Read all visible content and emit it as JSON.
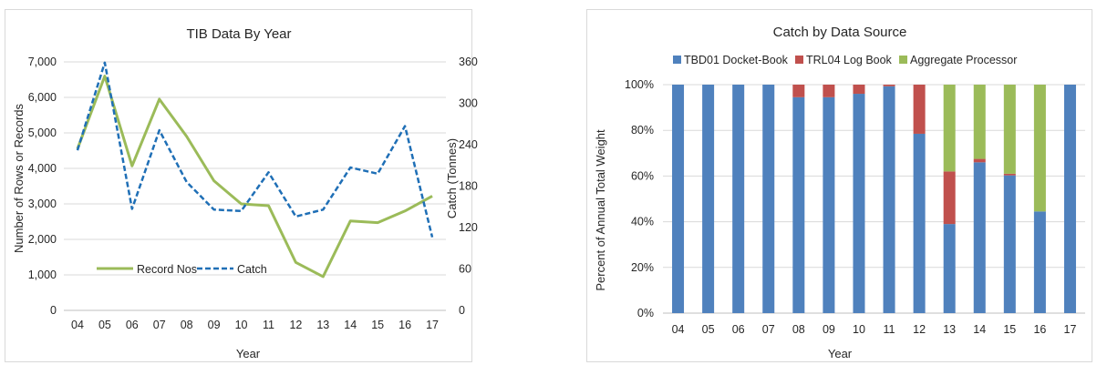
{
  "chart_data": [
    {
      "type": "line",
      "title": "TIB Data By Year",
      "xlabel": "Year",
      "ylabel": "Number of Rows or Records",
      "y2label": "Catch (Tonnes)",
      "categories": [
        "04",
        "05",
        "06",
        "07",
        "08",
        "09",
        "10",
        "11",
        "12",
        "13",
        "14",
        "15",
        "16",
        "17"
      ],
      "ylim": [
        0,
        7000
      ],
      "yticks": [
        "0",
        "1,000",
        "2,000",
        "3,000",
        "4,000",
        "5,000",
        "6,000",
        "7,000"
      ],
      "y2lim": [
        0,
        360
      ],
      "y2ticks": [
        "0",
        "60",
        "120",
        "180",
        "240",
        "300",
        "360"
      ],
      "series": [
        {
          "name": "Record Nos",
          "axis": "left",
          "color": "#9bbb59",
          "dash": "solid",
          "values": [
            4550,
            6600,
            4070,
            5950,
            4900,
            3650,
            3000,
            2950,
            1350,
            950,
            2520,
            2470,
            2800,
            3220
          ]
        },
        {
          "name": "Catch",
          "axis": "right",
          "color": "#1f6fb6",
          "dash": "dashed",
          "values": [
            232,
            359,
            147,
            261,
            186,
            146,
            144,
            200,
            136,
            146,
            207,
            198,
            267,
            106
          ]
        }
      ],
      "grid": true,
      "legend": "bottom-left"
    },
    {
      "type": "bar",
      "stacked": true,
      "title": "Catch by  Data Source",
      "xlabel": "Year",
      "ylabel": "Percent of Annual Total Weight",
      "categories": [
        "04",
        "05",
        "06",
        "07",
        "08",
        "09",
        "10",
        "11",
        "12",
        "13",
        "14",
        "15",
        "16",
        "17"
      ],
      "ylim": [
        0,
        100
      ],
      "yticks": [
        "0%",
        "20%",
        "40%",
        "60%",
        "80%",
        "100%"
      ],
      "series": [
        {
          "name": "TBD01 Docket-Book",
          "color": "#4f81bd",
          "values": [
            100,
            100,
            100,
            100,
            94.5,
            94.5,
            96,
            99.3,
            78.5,
            39,
            66,
            60.3,
            44.5,
            100
          ]
        },
        {
          "name": "TRL04 Log Book",
          "color": "#c0504d",
          "values": [
            0,
            0,
            0,
            0,
            5.5,
            5.5,
            4,
            0.7,
            21.5,
            23,
            1.5,
            0.7,
            0,
            0
          ]
        },
        {
          "name": "Aggregate Processor",
          "color": "#9bbb59",
          "values": [
            0,
            0,
            0,
            0,
            0,
            0,
            0,
            0,
            0,
            38,
            32.5,
            39,
            55.5,
            0
          ]
        }
      ],
      "grid": true,
      "legend": "top"
    }
  ]
}
